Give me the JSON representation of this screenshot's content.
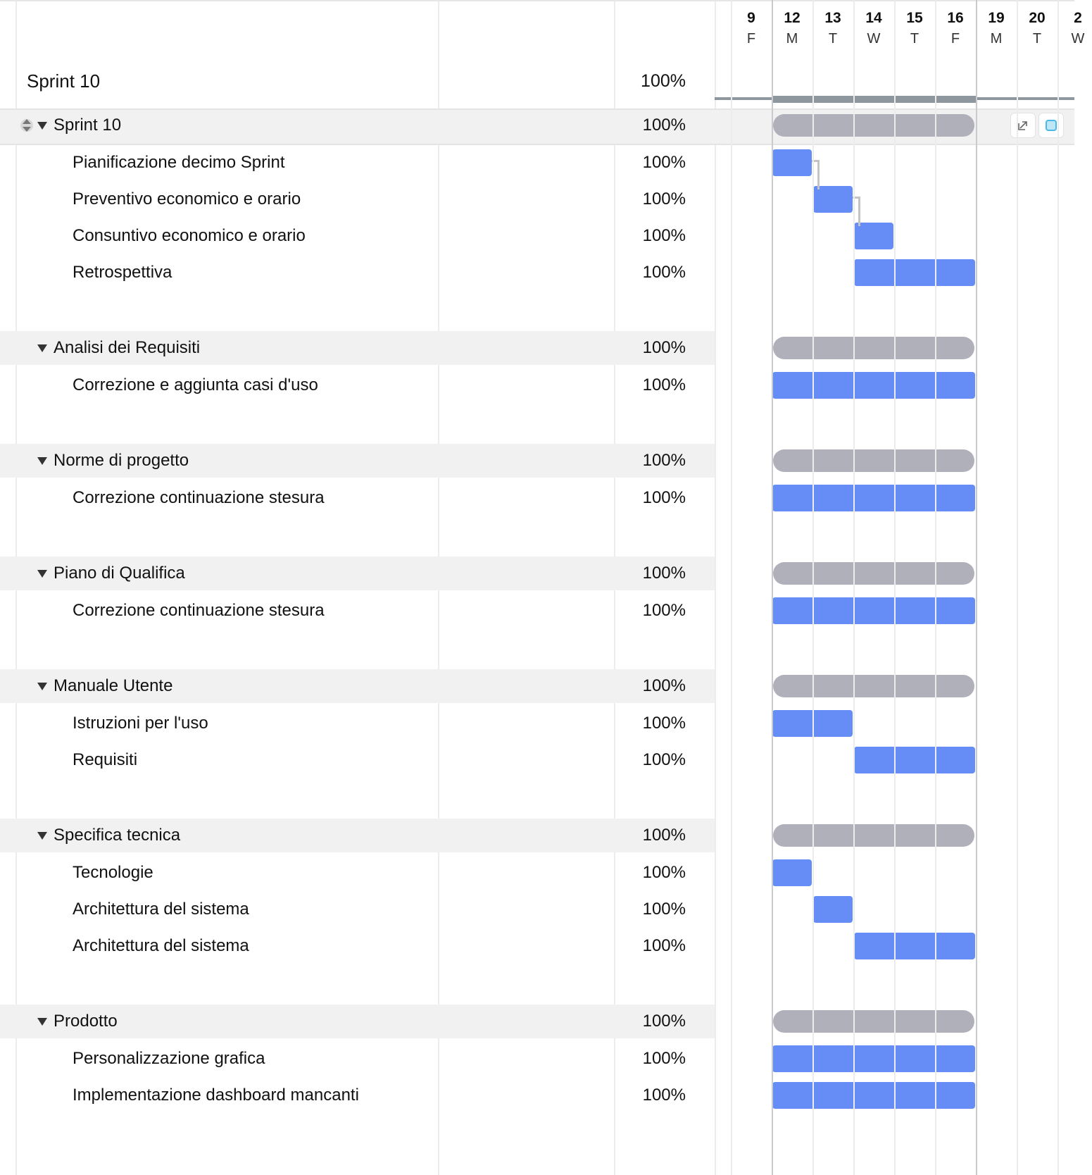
{
  "header": {
    "title": "Sprint 10",
    "percent": "100%"
  },
  "timeline": {
    "days": [
      {
        "num": "9",
        "wd": "F"
      },
      {
        "num": "12",
        "wd": "M"
      },
      {
        "num": "13",
        "wd": "T"
      },
      {
        "num": "14",
        "wd": "W"
      },
      {
        "num": "15",
        "wd": "T"
      },
      {
        "num": "16",
        "wd": "F"
      },
      {
        "num": "19",
        "wd": "M"
      },
      {
        "num": "20",
        "wd": "T"
      },
      {
        "num": "2",
        "wd": "W"
      }
    ]
  },
  "groups": [
    {
      "label": "Sprint 10",
      "percent": "100%",
      "span": [
        1,
        6
      ],
      "tasks": [
        {
          "label": "Pianificazione decimo Sprint",
          "percent": "100%",
          "span": [
            1,
            2
          ]
        },
        {
          "label": "Preventivo economico e orario",
          "percent": "100%",
          "span": [
            2,
            3
          ]
        },
        {
          "label": "Consuntivo economico e orario",
          "percent": "100%",
          "span": [
            3,
            4
          ]
        },
        {
          "label": "Retrospettiva",
          "percent": "100%",
          "span": [
            3,
            6
          ]
        }
      ]
    },
    {
      "label": "Analisi dei Requisiti",
      "percent": "100%",
      "span": [
        1,
        6
      ],
      "tasks": [
        {
          "label": "Correzione e aggiunta casi d'uso",
          "percent": "100%",
          "span": [
            1,
            6
          ]
        }
      ]
    },
    {
      "label": "Norme di progetto",
      "percent": "100%",
      "span": [
        1,
        6
      ],
      "tasks": [
        {
          "label": "Correzione continuazione stesura",
          "percent": "100%",
          "span": [
            1,
            6
          ]
        }
      ]
    },
    {
      "label": "Piano di Qualifica",
      "percent": "100%",
      "span": [
        1,
        6
      ],
      "tasks": [
        {
          "label": "Correzione continuazione stesura",
          "percent": "100%",
          "span": [
            1,
            6
          ]
        }
      ]
    },
    {
      "label": "Manuale Utente",
      "percent": "100%",
      "span": [
        1,
        6
      ],
      "tasks": [
        {
          "label": "Istruzioni per l'uso",
          "percent": "100%",
          "span": [
            1,
            3
          ]
        },
        {
          "label": "Requisiti",
          "percent": "100%",
          "span": [
            3,
            6
          ]
        }
      ]
    },
    {
      "label": "Specifica tecnica",
      "percent": "100%",
      "span": [
        1,
        6
      ],
      "tasks": [
        {
          "label": "Tecnologie",
          "percent": "100%",
          "span": [
            1,
            2
          ]
        },
        {
          "label": "Architettura del sistema",
          "percent": "100%",
          "span": [
            2,
            3
          ]
        },
        {
          "label": "Architettura del sistema",
          "percent": "100%",
          "span": [
            3,
            6
          ]
        }
      ]
    },
    {
      "label": "Prodotto",
      "percent": "100%",
      "span": [
        1,
        6
      ],
      "tasks": [
        {
          "label": "Personalizzazione grafica",
          "percent": "100%",
          "span": [
            1,
            6
          ]
        },
        {
          "label": "Implementazione dashboard mancanti",
          "percent": "100%",
          "span": [
            1,
            6
          ]
        }
      ]
    }
  ],
  "colors": {
    "task_bar": "#668cf5",
    "group_bar": "#b0b0ba",
    "band": "#f1f1f1"
  },
  "icons": [
    "sort-handle-icon",
    "collapse-caret-icon",
    "open-detail-icon",
    "color-swatch-icon"
  ]
}
